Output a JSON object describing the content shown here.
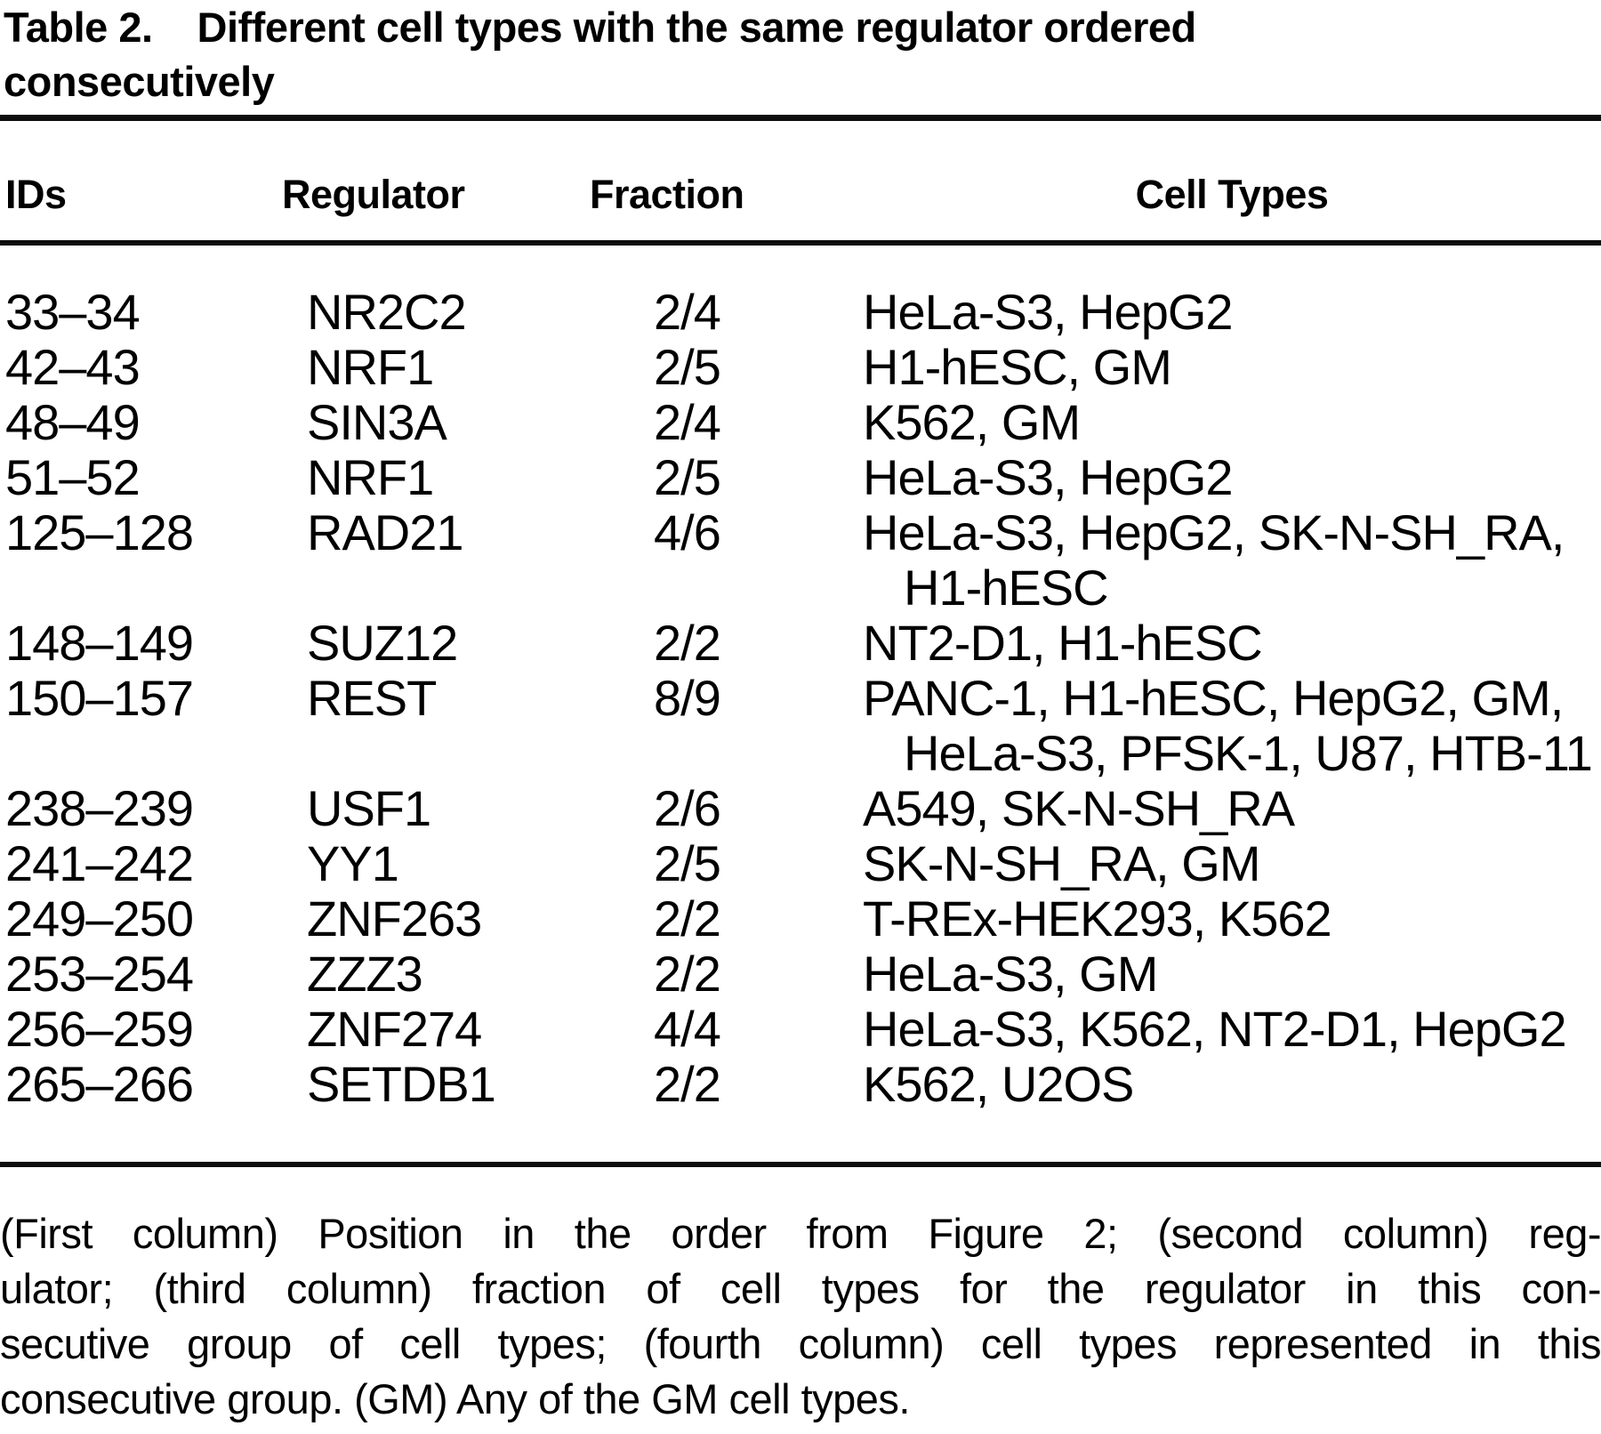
{
  "title": {
    "label": "Table 2.",
    "caption_line1": "Different cell types with the same regulator ordered",
    "caption_line2": "consecutively"
  },
  "columns": {
    "ids": "IDs",
    "regulator": "Regulator",
    "fraction": "Fraction",
    "cell_types": "Cell Types"
  },
  "table": {
    "rows": [
      {
        "ids": "33–34",
        "regulator": "NR2C2",
        "fraction": "2/4",
        "cell_types": [
          "HeLa-S3, HepG2"
        ]
      },
      {
        "ids": "42–43",
        "regulator": "NRF1",
        "fraction": "2/5",
        "cell_types": [
          "H1-hESC, GM"
        ]
      },
      {
        "ids": "48–49",
        "regulator": "SIN3A",
        "fraction": "2/4",
        "cell_types": [
          "K562, GM"
        ]
      },
      {
        "ids": "51–52",
        "regulator": "NRF1",
        "fraction": "2/5",
        "cell_types": [
          "HeLa-S3, HepG2"
        ]
      },
      {
        "ids": "125–128",
        "regulator": "RAD21",
        "fraction": "4/6",
        "cell_types": [
          "HeLa-S3, HepG2, SK-N-SH_RA,",
          "H1-hESC"
        ]
      },
      {
        "ids": "148–149",
        "regulator": "SUZ12",
        "fraction": "2/2",
        "cell_types": [
          "NT2-D1, H1-hESC"
        ]
      },
      {
        "ids": "150–157",
        "regulator": "REST",
        "fraction": "8/9",
        "cell_types": [
          "PANC-1, H1-hESC, HepG2, GM,",
          "HeLa-S3, PFSK-1, U87, HTB-11"
        ]
      },
      {
        "ids": "238–239",
        "regulator": "USF1",
        "fraction": "2/6",
        "cell_types": [
          "A549, SK-N-SH_RA"
        ]
      },
      {
        "ids": "241–242",
        "regulator": "YY1",
        "fraction": "2/5",
        "cell_types": [
          "SK-N-SH_RA, GM"
        ]
      },
      {
        "ids": "249–250",
        "regulator": "ZNF263",
        "fraction": "2/2",
        "cell_types": [
          "T-REx-HEK293, K562"
        ]
      },
      {
        "ids": "253–254",
        "regulator": "ZZZ3",
        "fraction": "2/2",
        "cell_types": [
          "HeLa-S3, GM"
        ]
      },
      {
        "ids": "256–259",
        "regulator": "ZNF274",
        "fraction": "4/4",
        "cell_types": [
          "HeLa-S3, K562, NT2-D1, HepG2"
        ]
      },
      {
        "ids": "265–266",
        "regulator": "SETDB1",
        "fraction": "2/2",
        "cell_types": [
          "K562, U2OS"
        ]
      }
    ]
  },
  "footnote": {
    "lines": [
      "(First column) Position in the order from Figure 2; (second column) reg-",
      "ulator; (third column) fraction of cell types for the regulator in this con-",
      "secutive group of cell types; (fourth column) cell types represented in this",
      "consecutive group. (GM) Any of the GM cell types."
    ]
  }
}
